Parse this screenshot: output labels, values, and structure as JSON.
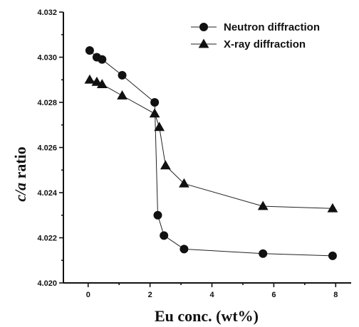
{
  "chart_data": {
    "type": "line",
    "title": "",
    "xlabel": "Eu conc. (wt%)",
    "ylabel_italic": "c/a",
    "ylabel_rest": " ratio",
    "xlim": [
      -0.8,
      8.5
    ],
    "ylim": [
      4.02,
      4.032
    ],
    "xticks": [
      {
        "value": 0,
        "label": "0"
      },
      {
        "value": 2,
        "label": "2"
      },
      {
        "value": 4,
        "label": "4"
      },
      {
        "value": 6,
        "label": "6"
      },
      {
        "value": 8,
        "label": "8"
      }
    ],
    "yticks": [
      {
        "value": 4.02,
        "label": "4.020"
      },
      {
        "value": 4.022,
        "label": "4.022"
      },
      {
        "value": 4.024,
        "label": "4.024"
      },
      {
        "value": 4.026,
        "label": "4.026"
      },
      {
        "value": 4.028,
        "label": "4.028"
      },
      {
        "value": 4.03,
        "label": "4.030"
      },
      {
        "value": 4.032,
        "label": "4.032"
      }
    ],
    "legend_position": "top-right",
    "grid": false,
    "series": [
      {
        "name": "Neutron diffraction",
        "marker": "circle",
        "color": "#111111",
        "points": [
          {
            "x": 0.05,
            "y": 4.0303
          },
          {
            "x": 0.28,
            "y": 4.03
          },
          {
            "x": 0.45,
            "y": 4.0299
          },
          {
            "x": 1.1,
            "y": 4.0292
          },
          {
            "x": 2.15,
            "y": 4.028
          },
          {
            "x": 2.25,
            "y": 4.023
          },
          {
            "x": 2.45,
            "y": 4.0221
          },
          {
            "x": 3.1,
            "y": 4.0215
          },
          {
            "x": 5.65,
            "y": 4.0213
          },
          {
            "x": 7.9,
            "y": 4.0212
          }
        ]
      },
      {
        "name": "X-ray diffraction",
        "marker": "triangle",
        "color": "#111111",
        "points": [
          {
            "x": 0.05,
            "y": 4.029
          },
          {
            "x": 0.28,
            "y": 4.0289
          },
          {
            "x": 0.45,
            "y": 4.0288
          },
          {
            "x": 1.1,
            "y": 4.0283
          },
          {
            "x": 2.15,
            "y": 4.0275
          },
          {
            "x": 2.3,
            "y": 4.0269
          },
          {
            "x": 2.5,
            "y": 4.0252
          },
          {
            "x": 3.1,
            "y": 4.0244
          },
          {
            "x": 5.65,
            "y": 4.0234
          },
          {
            "x": 7.9,
            "y": 4.0233
          }
        ]
      }
    ]
  }
}
